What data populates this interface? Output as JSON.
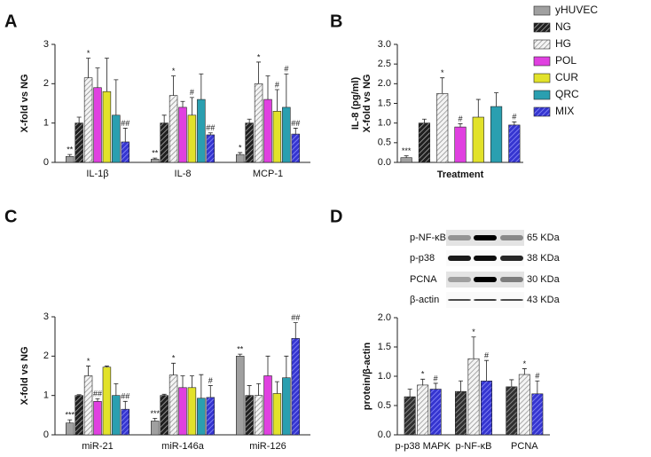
{
  "chart_data": [
    {
      "type": "bar",
      "panel": "A",
      "ylabel": [
        "X-fold vs NG"
      ],
      "ylim": [
        0,
        3
      ],
      "yticks": [
        0,
        1,
        2,
        3
      ],
      "legend": "outside-right",
      "categories": [
        "IL-1β",
        "IL-8",
        "MCP-1"
      ],
      "series": [
        {
          "name": "yHUVEC",
          "color": "#a0a0a0",
          "values": [
            0.15,
            0.08,
            0.2
          ],
          "errors": [
            0.05,
            0.03,
            0.05
          ],
          "annotations": [
            "**",
            "**",
            "*"
          ]
        },
        {
          "name": "NG",
          "color": "#202020",
          "hatch": "#bbbbbb",
          "values": [
            1.0,
            1.0,
            1.0
          ],
          "errors": [
            0.15,
            0.2,
            0.1
          ],
          "annotations": [
            null,
            null,
            null
          ]
        },
        {
          "name": "HG",
          "color": "#f4f4f4",
          "hatch": "#888888",
          "values": [
            2.15,
            1.7,
            2.0
          ],
          "errors": [
            0.5,
            0.5,
            0.55
          ],
          "annotations": [
            "*",
            "*",
            "*"
          ]
        },
        {
          "name": "POL",
          "color": "#e040e0",
          "values": [
            1.9,
            1.4,
            1.6
          ],
          "errors": [
            0.5,
            0.15,
            0.6
          ],
          "annotations": [
            null,
            null,
            null
          ]
        },
        {
          "name": "CUR",
          "color": "#e2e22a",
          "values": [
            1.8,
            1.2,
            1.3
          ],
          "errors": [
            0.85,
            0.45,
            0.55
          ],
          "annotations": [
            null,
            "#",
            "#"
          ]
        },
        {
          "name": "QRC",
          "color": "#2a9fb0",
          "values": [
            1.2,
            1.6,
            1.4
          ],
          "errors": [
            0.9,
            0.65,
            0.85
          ],
          "annotations": [
            null,
            null,
            "#"
          ]
        },
        {
          "name": "MIX",
          "color": "#3535d0",
          "hatch": "#9a9aff",
          "values": [
            0.52,
            0.7,
            0.72
          ],
          "errors": [
            0.35,
            0.05,
            0.15
          ],
          "annotations": [
            "##",
            "##",
            "##"
          ]
        }
      ]
    },
    {
      "type": "bar",
      "panel": "B",
      "ylabel": [
        "IL-8 (pg/ml)",
        "X-fold vs NG"
      ],
      "xlabel": "Treatment",
      "ylim": [
        0,
        3
      ],
      "yticks": [
        {
          "value": 0,
          "label": "0.0"
        },
        0.5,
        {
          "value": 1,
          "label": "1.0"
        },
        1.5,
        {
          "value": 2,
          "label": "2.0"
        },
        2.5,
        {
          "value": 3,
          "label": "3.0"
        }
      ],
      "values": [
        0.12,
        1.0,
        1.75,
        0.9,
        1.15,
        1.42,
        0.95
      ],
      "errors": [
        0.05,
        0.1,
        0.4,
        0.08,
        0.45,
        0.35,
        0.08
      ],
      "annotations": [
        "***",
        null,
        "*",
        "#",
        null,
        null,
        "#"
      ],
      "colors": [
        "#a0a0a0",
        "#202020",
        "#f4f4f4",
        "#e040e0",
        "#e2e22a",
        "#2a9fb0",
        "#3535d0"
      ],
      "hatches": [
        null,
        "#bbbbbb",
        "#888888",
        null,
        null,
        null,
        "#9a9aff"
      ]
    },
    {
      "type": "bar",
      "panel": "C",
      "ylabel": [
        "X-fold vs NG"
      ],
      "ylim": [
        0,
        3
      ],
      "yticks": [
        0,
        1,
        2,
        3
      ],
      "categories": [
        "miR-21",
        "miR-146a",
        "miR-126"
      ],
      "series": [
        {
          "color": "#a0a0a0",
          "values": [
            0.3,
            0.35,
            2.0
          ],
          "errors": [
            0.08,
            0.07,
            0.05
          ],
          "annotations": [
            "***",
            "***",
            "**"
          ]
        },
        {
          "color": "#202020",
          "hatch": "#bbbbbb",
          "values": [
            1.0,
            1.0,
            1.0
          ],
          "errors": [
            0.02,
            0.03,
            0.25
          ],
          "annotations": [
            null,
            null,
            null
          ]
        },
        {
          "color": "#f4f4f4",
          "hatch": "#888888",
          "values": [
            1.5,
            1.52,
            1.0
          ],
          "errors": [
            0.25,
            0.3,
            0.3
          ],
          "annotations": [
            "*",
            "*",
            null
          ]
        },
        {
          "color": "#e040e0",
          "values": [
            0.85,
            1.2,
            1.5
          ],
          "errors": [
            0.07,
            0.3,
            0.5
          ],
          "annotations": [
            "##",
            null,
            null
          ]
        },
        {
          "color": "#e2e22a",
          "values": [
            1.72,
            1.2,
            1.05
          ],
          "errors": [
            0.03,
            0.3,
            0.3
          ],
          "annotations": [
            null,
            null,
            null
          ]
        },
        {
          "color": "#2a9fb0",
          "values": [
            1.0,
            0.93,
            1.45
          ],
          "errors": [
            0.3,
            0.6,
            0.55
          ],
          "annotations": [
            null,
            null,
            null
          ]
        },
        {
          "color": "#3535d0",
          "hatch": "#9a9aff",
          "values": [
            0.65,
            0.95,
            2.45
          ],
          "errors": [
            0.2,
            0.3,
            0.4
          ],
          "annotations": [
            "##",
            "#",
            "##"
          ]
        }
      ]
    },
    {
      "type": "bar",
      "panel": "D",
      "ylabel": [
        "protein/β-actin"
      ],
      "ylim": [
        0,
        2
      ],
      "yticks": [
        {
          "value": 0,
          "label": "0.0"
        },
        0.5,
        {
          "value": 1,
          "label": "1.0"
        },
        1.5,
        {
          "value": 2,
          "label": "2.0"
        }
      ],
      "blot": [
        {
          "label": "p-NF-κB",
          "size": "65 KDa"
        },
        {
          "label": "p-p38",
          "size": "38 KDa"
        },
        {
          "label": "PCNA",
          "size": "30 KDa"
        },
        {
          "label": "β-actin",
          "size": "43 KDa"
        }
      ],
      "categories": [
        "p-p38 MAPK",
        "p-NF-κB",
        "PCNA"
      ],
      "series": [
        {
          "color": "#303030",
          "hatch": "#aaaaaa",
          "values": [
            0.65,
            0.74,
            0.82
          ],
          "errors": [
            0.13,
            0.18,
            0.12
          ],
          "annotations": [
            null,
            null,
            null
          ]
        },
        {
          "color": "#f4f4f4",
          "hatch": "#888888",
          "values": [
            0.85,
            1.3,
            1.03
          ],
          "errors": [
            0.1,
            0.37,
            0.1
          ],
          "annotations": [
            "*",
            "*",
            "*"
          ]
        },
        {
          "color": "#3535d0",
          "hatch": "#9a9aff",
          "values": [
            0.78,
            0.92,
            0.7
          ],
          "errors": [
            0.1,
            0.35,
            0.22
          ],
          "annotations": [
            "#",
            "#",
            "#"
          ]
        }
      ]
    }
  ]
}
